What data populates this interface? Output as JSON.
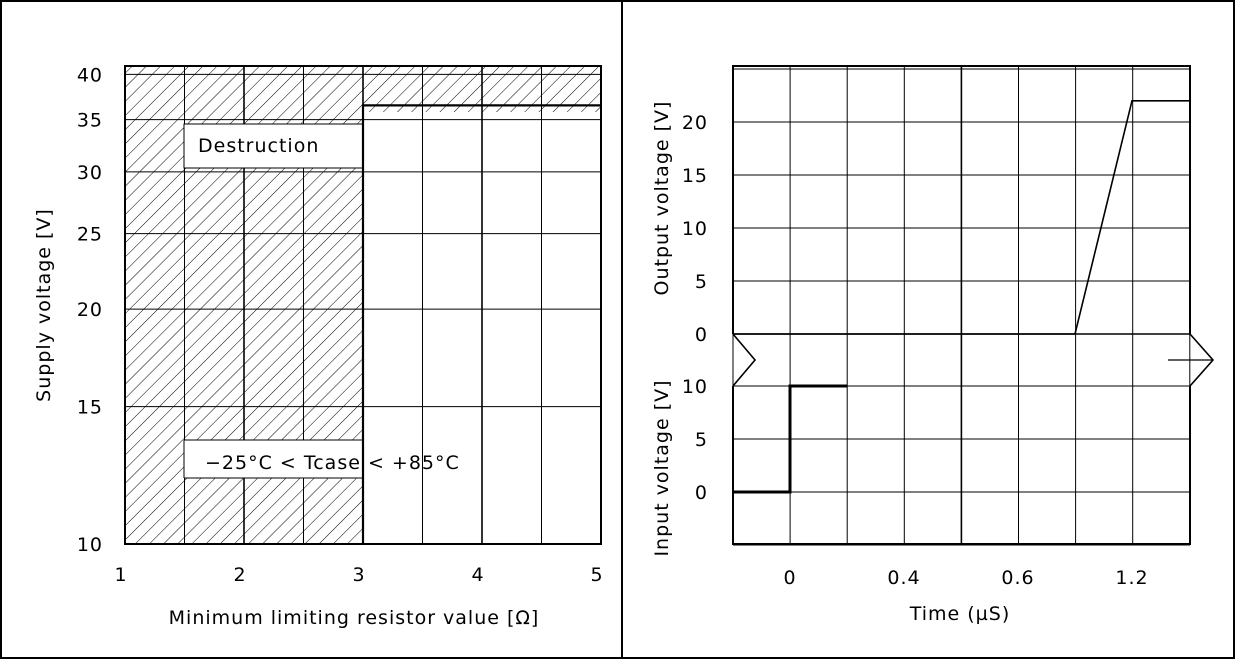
{
  "chart_data": [
    {
      "type": "area",
      "xlabel": "Minimum limiting resistor value [Ω]",
      "ylabel": "Supply voltage [V]",
      "xlim": [
        1,
        5
      ],
      "ylim": [
        10,
        41
      ],
      "y_scale": "log",
      "x_ticks": [
        "1",
        "2",
        "3",
        "4",
        "5"
      ],
      "y_ticks": [
        "10",
        "15",
        "20",
        "25",
        "30",
        "35",
        "40"
      ],
      "grid": true,
      "annotations": [
        "Destruction",
        "−25°C < Tcase < +85°C"
      ],
      "regions": [
        {
          "label": "Destruction",
          "x": [
            1,
            3
          ],
          "y": [
            10,
            41
          ]
        },
        {
          "label": "Destruction",
          "x": [
            3,
            5
          ],
          "y": [
            36.5,
            41
          ]
        }
      ],
      "boundary": {
        "x": [
          3,
          3,
          5
        ],
        "y": [
          10,
          36.5,
          36.5
        ]
      }
    },
    {
      "type": "line",
      "xlabel": "Time (µS)",
      "ylabel_top": "Output voltage [V]",
      "ylabel_bottom": "Input voltage [V]",
      "x_ticks": [
        "0",
        "0.4",
        "0.6",
        "1.2"
      ],
      "grid": true,
      "series": [
        {
          "axis": "output",
          "y_ticks": [
            "0",
            "5",
            "10",
            "15",
            "20"
          ],
          "ylim": [
            0,
            25
          ],
          "x": [
            -0.2,
            1.0,
            1.2,
            1.4
          ],
          "y": [
            0,
            0,
            22,
            22
          ]
        },
        {
          "axis": "input",
          "y_ticks": [
            "0",
            "5",
            "10"
          ],
          "ylim": [
            -5,
            10
          ],
          "x": [
            -0.2,
            0,
            0,
            0.2
          ],
          "y": [
            0,
            0,
            10,
            10
          ]
        }
      ]
    }
  ]
}
